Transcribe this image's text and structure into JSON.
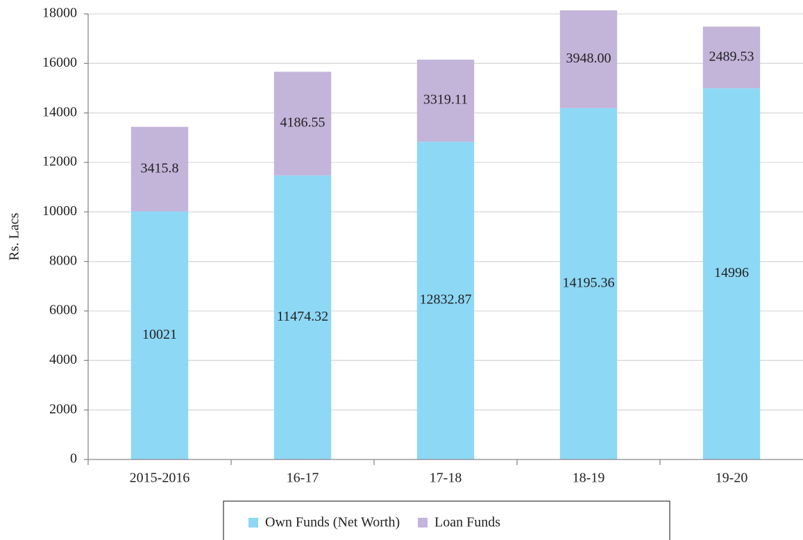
{
  "chart_data": {
    "type": "stacked_bar",
    "y_label": "Rs. Lacs",
    "categories": [
      "2015-2016",
      "16-17",
      "17-18",
      "18-19",
      "19-20"
    ],
    "series": [
      {
        "name": "Own Funds (Net Worth)",
        "color": "#8dd8f5",
        "values": [
          10021,
          11474.32,
          12832.87,
          14195.36,
          14996
        ]
      },
      {
        "name": "Loan Funds",
        "color": "#c3b4da",
        "values": [
          3415.8,
          4186.55,
          3319.11,
          3948,
          2489.53
        ],
        "value_labels": [
          "3415.8",
          "4186.55",
          "3319.11",
          "3948.00",
          "2489.53"
        ]
      }
    ],
    "ylim": [
      0,
      18000
    ],
    "yticks": [
      0,
      2000,
      4000,
      6000,
      8000,
      10000,
      12000,
      14000,
      16000,
      18000
    ],
    "grid": true,
    "legend": "bottom"
  }
}
